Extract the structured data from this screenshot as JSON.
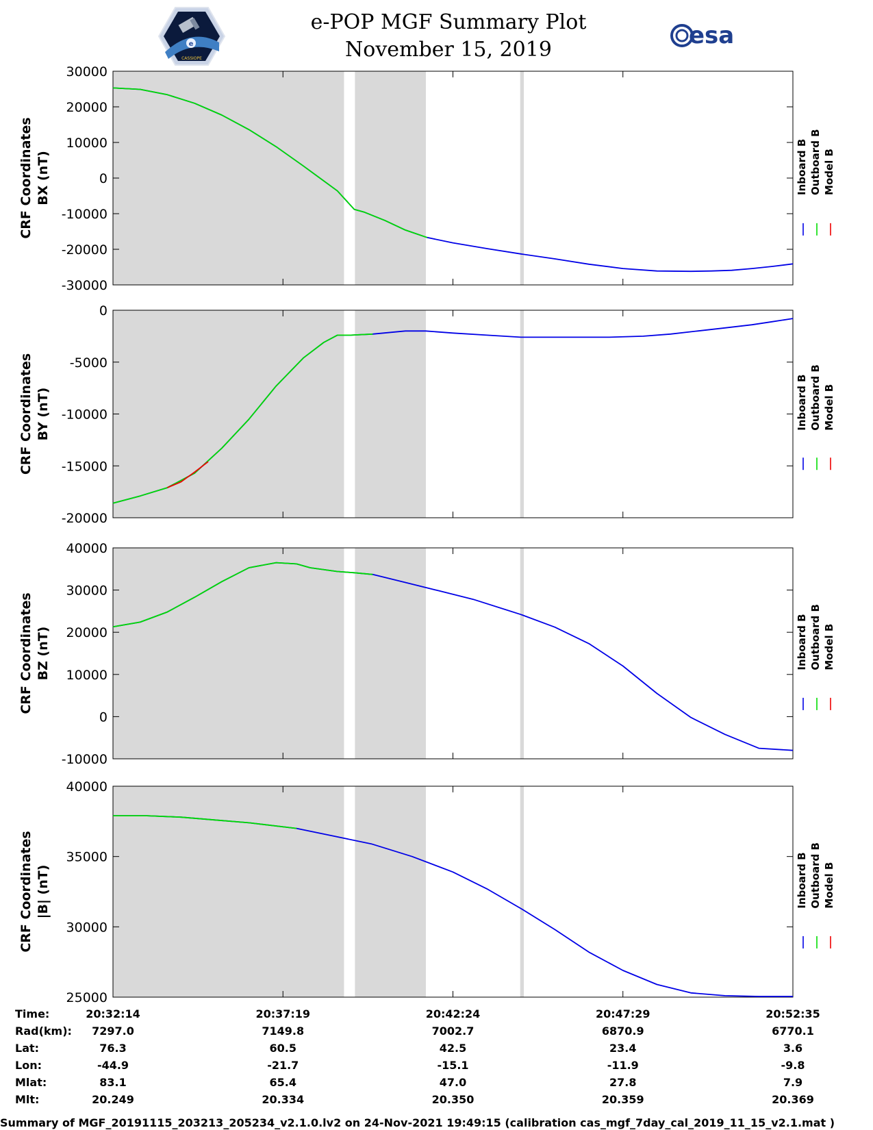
{
  "header": {
    "title_line1": "e-POP MGF Summary Plot",
    "title_line2": "November 15, 2019",
    "esa_logo_text": "esa",
    "cassiope_logo_text": "CASSIOPE",
    "cassiope_logo_mark": "e"
  },
  "colors": {
    "inboard": "#0000e6",
    "outboard": "#00dd00",
    "model": "#ee0000",
    "shade": "#d9d9d9"
  },
  "shading": [
    {
      "from": 0,
      "to": 0.3398
    },
    {
      "from": 0.3559,
      "to": 0.4602
    },
    {
      "from": 0.5989,
      "to": 0.6043
    }
  ],
  "legend": {
    "labels": [
      "Inboard B",
      "Outboard B",
      "Model B"
    ]
  },
  "chart_data": [
    {
      "type": "line",
      "id": "bx",
      "ylabel_line1": "CRF Coordinates",
      "ylabel_line2": "BX (nT)",
      "ylim": [
        -30000,
        30000
      ],
      "yticks": [
        30000,
        20000,
        10000,
        0,
        -10000,
        -20000,
        -30000
      ],
      "ytick_labels": [
        "30000",
        "20000",
        "10000",
        "0",
        "-10000",
        "-20000",
        "-30000"
      ],
      "green_until": 0.462,
      "series": [
        {
          "name": "Inboard B",
          "x": [
            0,
            0.04,
            0.08,
            0.12,
            0.16,
            0.2,
            0.24,
            0.28,
            0.33,
            0.355,
            0.37,
            0.4,
            0.43,
            0.462,
            0.5,
            0.55,
            0.6,
            0.65,
            0.7,
            0.75,
            0.8,
            0.85,
            0.88,
            0.91,
            0.94,
            0.97,
            1.0
          ],
          "y": [
            25300,
            24900,
            23400,
            21000,
            17700,
            13600,
            8800,
            3400,
            -3600,
            -8800,
            -9600,
            -11900,
            -14600,
            -16700,
            -18200,
            -19800,
            -21300,
            -22700,
            -24200,
            -25400,
            -26100,
            -26200,
            -26100,
            -25900,
            -25400,
            -24800,
            -24100
          ]
        },
        {
          "name": "Outboard B",
          "x": [
            0,
            0.04,
            0.08,
            0.12,
            0.16,
            0.2,
            0.24,
            0.28,
            0.33,
            0.355,
            0.37,
            0.4,
            0.43,
            0.462
          ],
          "y": [
            25300,
            24900,
            23400,
            21000,
            17700,
            13600,
            8800,
            3400,
            -3600,
            -8800,
            -9600,
            -11900,
            -14600,
            -16700
          ]
        }
      ]
    },
    {
      "type": "line",
      "id": "by",
      "ylabel_line1": "CRF Coordinates",
      "ylabel_line2": "BY (nT)",
      "ylim": [
        -20000,
        0
      ],
      "yticks": [
        0,
        -5000,
        -10000,
        -15000,
        -20000
      ],
      "ytick_labels": [
        "0",
        "-5000",
        "-10000",
        "-15000",
        "-20000"
      ],
      "green_until": 0.382,
      "series": [
        {
          "name": "Inboard B",
          "x": [
            0,
            0.04,
            0.08,
            0.12,
            0.16,
            0.2,
            0.24,
            0.28,
            0.31,
            0.33,
            0.35,
            0.382,
            0.43,
            0.46,
            0.5,
            0.55,
            0.6,
            0.65,
            0.7,
            0.73,
            0.78,
            0.82,
            0.86,
            0.9,
            0.94,
            0.97,
            1.0
          ],
          "y": [
            -18600,
            -17900,
            -17100,
            -15700,
            -13300,
            -10500,
            -7300,
            -4600,
            -3100,
            -2400,
            -2400,
            -2300,
            -2000,
            -2000,
            -2200,
            -2400,
            -2600,
            -2600,
            -2600,
            -2600,
            -2500,
            -2300,
            -2000,
            -1700,
            -1400,
            -1100,
            -800
          ]
        },
        {
          "name": "Outboard B",
          "x": [
            0,
            0.04,
            0.08,
            0.12,
            0.16,
            0.2,
            0.24,
            0.28,
            0.31,
            0.33,
            0.35,
            0.382
          ],
          "y": [
            -18600,
            -17900,
            -17100,
            -15700,
            -13300,
            -10500,
            -7300,
            -4600,
            -3100,
            -2400,
            -2400,
            -2300
          ]
        },
        {
          "name": "Model B",
          "x": [
            0.08,
            0.1,
            0.12,
            0.14
          ],
          "y": [
            -17100,
            -16550,
            -15600,
            -14600
          ]
        }
      ]
    },
    {
      "type": "line",
      "id": "bz",
      "ylabel_line1": "CRF Coordinates",
      "ylabel_line2": "BZ (nT)",
      "ylim": [
        -10000,
        40000
      ],
      "yticks": [
        40000,
        30000,
        20000,
        10000,
        0,
        -10000
      ],
      "ytick_labels": [
        "40000",
        "30000",
        "20000",
        "10000",
        "0",
        "-10000"
      ],
      "green_until": 0.382,
      "series": [
        {
          "name": "Inboard B",
          "x": [
            0,
            0.04,
            0.08,
            0.12,
            0.16,
            0.2,
            0.24,
            0.27,
            0.29,
            0.33,
            0.355,
            0.382,
            0.43,
            0.48,
            0.53,
            0.6,
            0.65,
            0.7,
            0.75,
            0.8,
            0.85,
            0.9,
            0.95,
            1.0
          ],
          "y": [
            21300,
            22400,
            24800,
            28300,
            32000,
            35300,
            36500,
            36200,
            35300,
            34400,
            34100,
            33700,
            31800,
            29800,
            27800,
            24200,
            21200,
            17300,
            12000,
            5500,
            -200,
            -4200,
            -7500,
            -8000
          ]
        },
        {
          "name": "Outboard B",
          "x": [
            0,
            0.04,
            0.08,
            0.12,
            0.16,
            0.2,
            0.24,
            0.27,
            0.29,
            0.33,
            0.355,
            0.382
          ],
          "y": [
            21300,
            22400,
            24800,
            28300,
            32000,
            35300,
            36500,
            36200,
            35300,
            34400,
            34100,
            33700
          ]
        }
      ]
    },
    {
      "type": "line",
      "id": "btotal",
      "ylabel_line1": "CRF Coordinates",
      "ylabel_line2": "|B| (nT)",
      "ylim": [
        25000,
        40000
      ],
      "yticks": [
        40000,
        35000,
        30000,
        25000
      ],
      "ytick_labels": [
        "40000",
        "35000",
        "30000",
        "25000"
      ],
      "green_until": 0.27,
      "series": [
        {
          "name": "Inboard B",
          "x": [
            0,
            0.05,
            0.1,
            0.15,
            0.2,
            0.27,
            0.32,
            0.38,
            0.44,
            0.5,
            0.55,
            0.6,
            0.65,
            0.7,
            0.75,
            0.8,
            0.85,
            0.9,
            0.95,
            1.0
          ],
          "y": [
            37900,
            37900,
            37800,
            37600,
            37400,
            37000,
            36500,
            35900,
            35000,
            33900,
            32700,
            31300,
            29800,
            28200,
            26900,
            25900,
            25300,
            25100,
            25050,
            25050
          ]
        },
        {
          "name": "Outboard B",
          "x": [
            0,
            0.05,
            0.1,
            0.15,
            0.2,
            0.27
          ],
          "y": [
            37900,
            37900,
            37800,
            37600,
            37400,
            37000
          ]
        }
      ]
    }
  ],
  "info_table": {
    "row_labels": [
      "Time:",
      "Rad(km):",
      "Lat:",
      "Lon:",
      "Mlat:",
      "Mlt:"
    ],
    "ticks": [
      {
        "frac": 0,
        "values": [
          "20:32:14",
          "7297.0",
          "76.3",
          "-44.9",
          "83.1",
          "20.249"
        ]
      },
      {
        "frac": 0.25,
        "values": [
          "20:37:19",
          "7149.8",
          "60.5",
          "-21.7",
          "65.4",
          "20.334"
        ]
      },
      {
        "frac": 0.5,
        "values": [
          "20:42:24",
          "7002.7",
          "42.5",
          "-15.1",
          "47.0",
          "20.350"
        ]
      },
      {
        "frac": 0.75,
        "values": [
          "20:47:29",
          "6870.9",
          "23.4",
          "-11.9",
          "27.8",
          "20.359"
        ]
      },
      {
        "frac": 1.0,
        "values": [
          "20:52:35",
          "6770.1",
          "3.6",
          "-9.8",
          "7.9",
          "20.369"
        ]
      }
    ]
  },
  "footer": {
    "text": "Summary of MGF_20191115_203213_205234_v2.1.0.lv2 on 24-Nov-2021 19:49:15 (calibration cas_mgf_7day_cal_2019_11_15_v2.1.mat )"
  }
}
